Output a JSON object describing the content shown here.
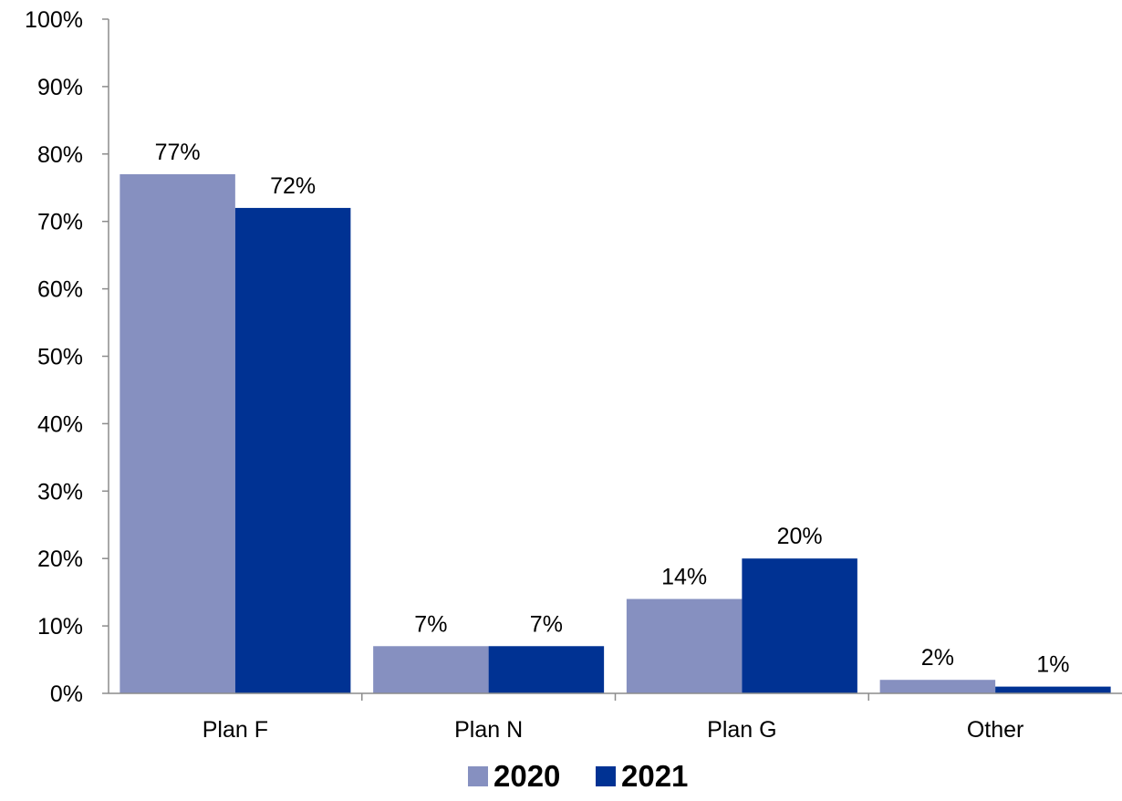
{
  "chart_data": {
    "type": "bar",
    "categories": [
      "Plan F",
      "Plan N",
      "Plan G",
      "Other"
    ],
    "series": [
      {
        "name": "2020",
        "values": [
          77,
          7,
          14,
          2
        ],
        "labels": [
          "77%",
          "7%",
          "14%",
          "2%"
        ],
        "color": "#8690c0"
      },
      {
        "name": "2021",
        "values": [
          72,
          7,
          20,
          1
        ],
        "labels": [
          "72%",
          "7%",
          "20%",
          "1%"
        ],
        "color": "#003293"
      }
    ],
    "ylim": [
      0,
      100
    ],
    "yticks": [
      0,
      10,
      20,
      30,
      40,
      50,
      60,
      70,
      80,
      90,
      100
    ],
    "ytick_labels": [
      "0%",
      "10%",
      "20%",
      "30%",
      "40%",
      "50%",
      "60%",
      "70%",
      "80%",
      "90%",
      "100%"
    ],
    "grid": false,
    "legend_position": "bottom-center",
    "title": "",
    "xlabel": "",
    "ylabel": ""
  }
}
